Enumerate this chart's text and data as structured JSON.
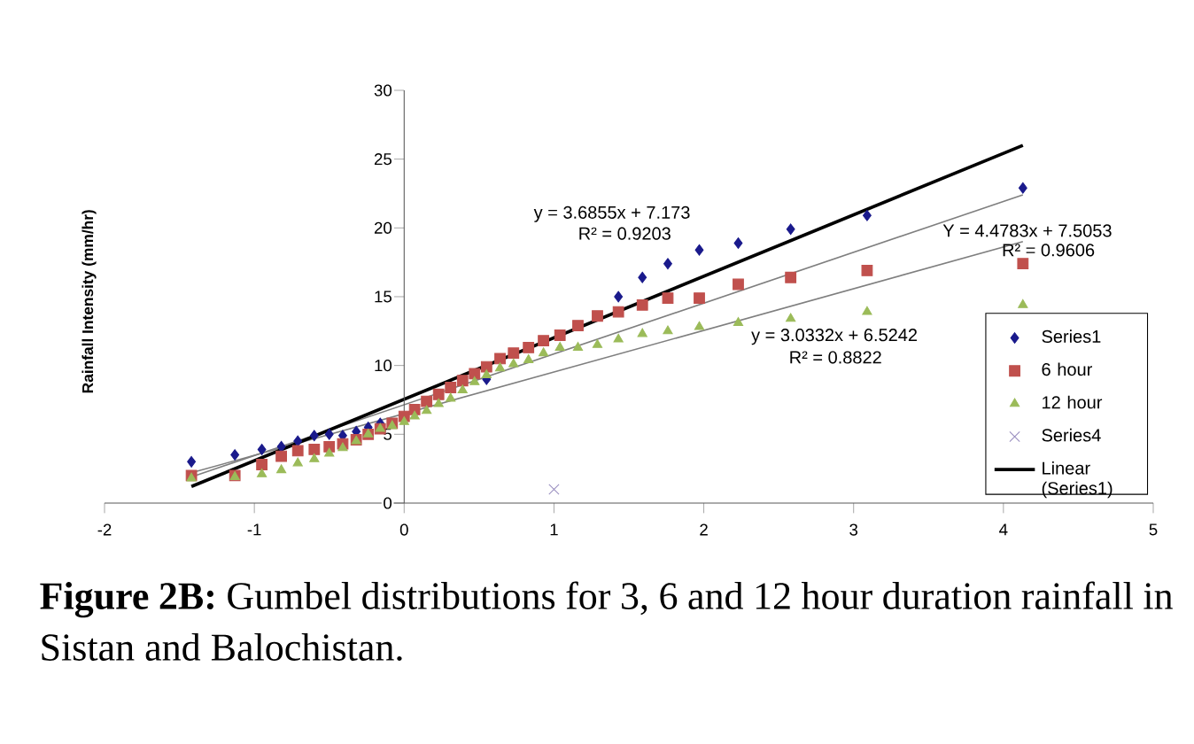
{
  "chart_data": {
    "type": "scatter",
    "xlabel": null,
    "ylabel": "Rainfall Intensity (mm/hr)",
    "xlim": [
      -2,
      5
    ],
    "ylim": [
      0,
      30
    ],
    "xticks": [
      -2,
      -1,
      0,
      1,
      2,
      3,
      4,
      5
    ],
    "yticks": [
      0,
      5,
      10,
      15,
      20,
      25,
      30
    ],
    "grid": false,
    "legend": "bottom right",
    "x": [
      -1.42,
      -1.13,
      -0.95,
      -0.82,
      -0.71,
      -0.6,
      -0.5,
      -0.41,
      -0.32,
      -0.24,
      -0.16,
      -0.08,
      0,
      0.07,
      0.15,
      0.23,
      0.31,
      0.39,
      0.47,
      0.55,
      0.64,
      0.73,
      0.83,
      0.93,
      1.04,
      1.16,
      1.29,
      1.43,
      1.59,
      1.76,
      1.97,
      2.23,
      2.58,
      3.09,
      4.13
    ],
    "series": [
      {
        "name": "Series1",
        "marker": "diamond",
        "color": "#1a1a8c",
        "values": [
          3.0,
          3.5,
          3.9,
          4.1,
          4.5,
          4.9,
          5.0,
          4.9,
          5.2,
          5.5,
          5.8,
          null,
          null,
          null,
          null,
          null,
          null,
          null,
          null,
          9.0,
          null,
          null,
          null,
          null,
          null,
          null,
          null,
          15.0,
          16.4,
          17.4,
          18.4,
          18.9,
          19.9,
          20.9,
          22.9
        ]
      },
      {
        "name": "6 hour",
        "marker": "square",
        "color": "#c0504d",
        "values": [
          2.0,
          2.0,
          2.8,
          3.4,
          3.8,
          3.9,
          4.1,
          4.3,
          4.6,
          5.0,
          5.4,
          5.8,
          6.3,
          6.8,
          7.4,
          7.9,
          8.4,
          8.9,
          9.4,
          9.9,
          10.5,
          10.9,
          11.3,
          11.8,
          12.2,
          12.9,
          13.6,
          13.9,
          14.4,
          14.9,
          14.9,
          15.9,
          16.4,
          16.9,
          17.4
        ]
      },
      {
        "name": "12 hour",
        "marker": "triangle",
        "color": "#9bbb59",
        "values": [
          1.8,
          1.9,
          2.1,
          2.4,
          2.9,
          3.2,
          3.6,
          4.0,
          4.5,
          5.0,
          5.4,
          5.6,
          5.9,
          6.3,
          6.7,
          7.2,
          7.6,
          8.2,
          8.8,
          9.3,
          9.8,
          10.1,
          10.4,
          10.9,
          11.3,
          11.3,
          11.5,
          11.9,
          12.3,
          12.5,
          12.8,
          13.1,
          13.4,
          13.9,
          14.4
        ]
      },
      {
        "name": "Series4",
        "marker": "cross",
        "color": "#9a8fc0",
        "x": [
          1
        ],
        "values": [
          1
        ]
      },
      {
        "type": "line",
        "color": "#7f7f7f",
        "x": [
          -1.42,
          4.13
        ],
        "values": [
          1.9,
          22.4
        ]
      },
      {
        "type": "line",
        "color": "#7f7f7f",
        "x": [
          -1.42,
          4.13
        ],
        "values": [
          2.2,
          19.0
        ]
      },
      {
        "name": "Linear (Series1)",
        "type": "line",
        "color": "#000000",
        "x": [
          -1.42,
          4.13
        ],
        "values": [
          1.2,
          26.0
        ]
      }
    ],
    "annotations": [
      "y = 3.6855x + 7.173",
      "R² = 0.9203",
      "Y = 4.4783x + 7.5053",
      "R² = 0.9606",
      "y = 3.0332x + 6.5242",
      "R² = 0.8822",
      "**Figure 2B:** Gumbel distributions for 3, 6 and 12 hour duration rainfall in Sistan and Balochistan."
    ]
  }
}
